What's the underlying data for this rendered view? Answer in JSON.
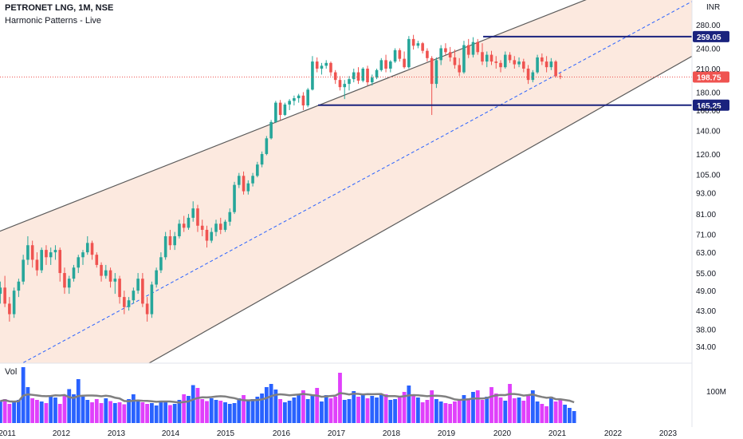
{
  "header": {
    "title": "PETRONET LNG, 1M, NSE",
    "subtitle": "Harmonic Patterns - Live"
  },
  "volume_panel": {
    "label": "Vol",
    "tick_label": "100M"
  },
  "colors": {
    "up": "#26a69a",
    "down": "#ef5350",
    "vol_blue": "#2962ff",
    "vol_magenta": "#e040fb",
    "channel_fill": "#fce9df",
    "channel_line": "#5a5a5a",
    "mid_line": "#2962ff",
    "level_line": "#1a237e",
    "price_line": "#ef5350",
    "ma_line": "#808080"
  },
  "chart_data": {
    "type": "candlestick",
    "interval": "1M",
    "y_scale": "log",
    "currency_label": "INR",
    "y_ticks": [
      "280.00",
      "240.00",
      "210.00",
      "180.00",
      "160.00",
      "140.00",
      "120.00",
      "105.00",
      "93.00",
      "81.00",
      "71.00",
      "63.00",
      "55.00",
      "49.00",
      "43.00",
      "38.00",
      "34.00"
    ],
    "x_ticks": [
      "2011",
      "2012",
      "2013",
      "2014",
      "2015",
      "2016",
      "2017",
      "2018",
      "2019",
      "2020",
      "2021",
      "2022",
      "2023"
    ],
    "last_price": "198.75",
    "horizontal_levels": [
      {
        "value": "259.05",
        "from": "2019-09"
      },
      {
        "value": "165.25",
        "from": "2016-09"
      }
    ],
    "channel": {
      "upper": {
        "from": [
          "2010-11",
          72
        ],
        "to": [
          "2022-07",
          380
        ]
      },
      "lower": {
        "from": [
          "2013-11",
          32
        ],
        "to": [
          "2022-12",
          205
        ]
      },
      "middle": {
        "from": [
          "2013-11",
          50
        ],
        "to": [
          "2022-12",
          295
        ],
        "style": "dashed"
      }
    },
    "candles_start": "2010-11",
    "candles": [
      [
        48,
        52,
        45,
        50
      ],
      [
        50,
        54,
        44,
        45
      ],
      [
        45,
        47,
        40,
        42
      ],
      [
        42,
        50,
        41,
        49
      ],
      [
        49,
        53,
        47,
        52
      ],
      [
        52,
        62,
        51,
        60
      ],
      [
        60,
        70,
        58,
        66
      ],
      [
        66,
        68,
        57,
        60
      ],
      [
        60,
        63,
        54,
        56
      ],
      [
        56,
        65,
        55,
        64
      ],
      [
        64,
        66,
        58,
        61
      ],
      [
        61,
        65,
        58,
        63
      ],
      [
        63,
        66,
        60,
        64
      ],
      [
        64,
        65,
        52,
        55
      ],
      [
        55,
        57,
        48,
        50
      ],
      [
        50,
        54,
        48,
        53
      ],
      [
        53,
        58,
        52,
        57
      ],
      [
        57,
        62,
        55,
        61
      ],
      [
        61,
        64,
        58,
        63
      ],
      [
        63,
        70,
        62,
        67
      ],
      [
        67,
        68,
        60,
        62
      ],
      [
        62,
        63,
        57,
        58
      ],
      [
        58,
        59,
        52,
        54
      ],
      [
        54,
        58,
        53,
        56
      ],
      [
        56,
        57,
        50,
        52
      ],
      [
        52,
        55,
        48,
        53
      ],
      [
        53,
        54,
        45,
        47
      ],
      [
        47,
        49,
        42,
        44
      ],
      [
        44,
        47,
        43,
        46
      ],
      [
        46,
        50,
        45,
        49
      ],
      [
        49,
        55,
        48,
        53
      ],
      [
        53,
        55,
        44,
        45
      ],
      [
        45,
        47,
        40,
        42
      ],
      [
        42,
        52,
        41,
        51
      ],
      [
        51,
        57,
        50,
        56
      ],
      [
        56,
        63,
        55,
        61
      ],
      [
        61,
        72,
        60,
        70
      ],
      [
        70,
        73,
        64,
        66
      ],
      [
        66,
        72,
        64,
        70
      ],
      [
        70,
        78,
        69,
        76
      ],
      [
        76,
        80,
        72,
        74
      ],
      [
        74,
        81,
        73,
        79
      ],
      [
        79,
        88,
        77,
        84
      ],
      [
        84,
        86,
        72,
        75
      ],
      [
        75,
        78,
        70,
        73
      ],
      [
        73,
        75,
        65,
        68
      ],
      [
        68,
        74,
        67,
        72
      ],
      [
        72,
        78,
        70,
        76
      ],
      [
        76,
        79,
        71,
        73
      ],
      [
        73,
        78,
        72,
        77
      ],
      [
        77,
        84,
        75,
        82
      ],
      [
        82,
        100,
        81,
        98
      ],
      [
        98,
        106,
        96,
        104
      ],
      [
        104,
        107,
        92,
        94
      ],
      [
        94,
        101,
        92,
        99
      ],
      [
        99,
        106,
        97,
        104
      ],
      [
        104,
        114,
        103,
        112
      ],
      [
        112,
        122,
        110,
        120
      ],
      [
        120,
        135,
        119,
        133
      ],
      [
        133,
        150,
        132,
        148
      ],
      [
        148,
        170,
        147,
        168
      ],
      [
        168,
        171,
        150,
        155
      ],
      [
        155,
        168,
        154,
        166
      ],
      [
        166,
        172,
        160,
        170
      ],
      [
        170,
        176,
        165,
        173
      ],
      [
        173,
        178,
        168,
        176
      ],
      [
        176,
        180,
        160,
        165
      ],
      [
        165,
        185,
        163,
        183
      ],
      [
        183,
        228,
        182,
        220
      ],
      [
        220,
        226,
        205,
        210
      ],
      [
        210,
        218,
        202,
        214
      ],
      [
        214,
        222,
        210,
        218
      ],
      [
        218,
        220,
        200,
        205
      ],
      [
        205,
        208,
        190,
        195
      ],
      [
        195,
        200,
        182,
        186
      ],
      [
        186,
        195,
        172,
        190
      ],
      [
        190,
        200,
        182,
        196
      ],
      [
        196,
        210,
        192,
        205
      ],
      [
        205,
        212,
        190,
        194
      ],
      [
        194,
        212,
        192,
        210
      ],
      [
        210,
        214,
        188,
        192
      ],
      [
        192,
        202,
        188,
        198
      ],
      [
        198,
        210,
        196,
        208
      ],
      [
        208,
        225,
        206,
        222
      ],
      [
        222,
        230,
        205,
        210
      ],
      [
        210,
        222,
        205,
        220
      ],
      [
        220,
        240,
        218,
        237
      ],
      [
        237,
        240,
        220,
        224
      ],
      [
        224,
        235,
        210,
        212
      ],
      [
        212,
        260,
        210,
        255
      ],
      [
        255,
        262,
        238,
        244
      ],
      [
        244,
        252,
        240,
        248
      ],
      [
        248,
        250,
        232,
        236
      ],
      [
        236,
        240,
        220,
        225
      ],
      [
        225,
        228,
        155,
        190
      ],
      [
        190,
        226,
        185,
        222
      ],
      [
        222,
        245,
        215,
        240
      ],
      [
        240,
        248,
        230,
        234
      ],
      [
        234,
        242,
        220,
        226
      ],
      [
        226,
        238,
        210,
        215
      ],
      [
        215,
        225,
        200,
        205
      ],
      [
        205,
        252,
        203,
        245
      ],
      [
        245,
        255,
        225,
        230
      ],
      [
        230,
        258,
        226,
        250
      ],
      [
        250,
        255,
        230,
        234
      ],
      [
        234,
        248,
        215,
        220
      ],
      [
        220,
        235,
        212,
        230
      ],
      [
        230,
        236,
        215,
        220
      ],
      [
        220,
        228,
        210,
        218
      ],
      [
        218,
        222,
        205,
        212
      ],
      [
        212,
        235,
        210,
        230
      ],
      [
        230,
        234,
        218,
        222
      ],
      [
        222,
        228,
        210,
        216
      ],
      [
        216,
        226,
        212,
        220
      ],
      [
        220,
        224,
        205,
        210
      ],
      [
        210,
        215,
        190,
        195
      ],
      [
        195,
        208,
        192,
        205
      ],
      [
        205,
        230,
        203,
        226
      ],
      [
        226,
        232,
        215,
        220
      ],
      [
        220,
        228,
        205,
        212
      ],
      [
        212,
        225,
        208,
        220
      ],
      [
        220,
        222,
        198,
        200
      ],
      [
        200,
        204,
        196,
        198.75
      ]
    ],
    "volume_ma": "moving average line",
    "volume": [
      55,
      60,
      48,
      52,
      58,
      140,
      90,
      62,
      58,
      54,
      50,
      66,
      64,
      48,
      70,
      85,
      72,
      110,
      66,
      58,
      52,
      60,
      50,
      62,
      55,
      50,
      52,
      47,
      60,
      72,
      58,
      52,
      48,
      50,
      44,
      56,
      54,
      45,
      48,
      58,
      72,
      68,
      95,
      88,
      60,
      55,
      62,
      58,
      56,
      52,
      48,
      50,
      62,
      70,
      55,
      60,
      66,
      74,
      90,
      98,
      84,
      60,
      52,
      56,
      64,
      70,
      82,
      60,
      72,
      88,
      54,
      70,
      62,
      66,
      126,
      58,
      60,
      80,
      66,
      74,
      62,
      68,
      64,
      70,
      72,
      58,
      60,
      66,
      78,
      94,
      70,
      64,
      52,
      58,
      82,
      60,
      54,
      50,
      48,
      54,
      58,
      70,
      62,
      78,
      82,
      58,
      66,
      90,
      74,
      64,
      56,
      98,
      62,
      64,
      56,
      70,
      82,
      54,
      48,
      42,
      66,
      54,
      60,
      46,
      38,
      30
    ]
  }
}
